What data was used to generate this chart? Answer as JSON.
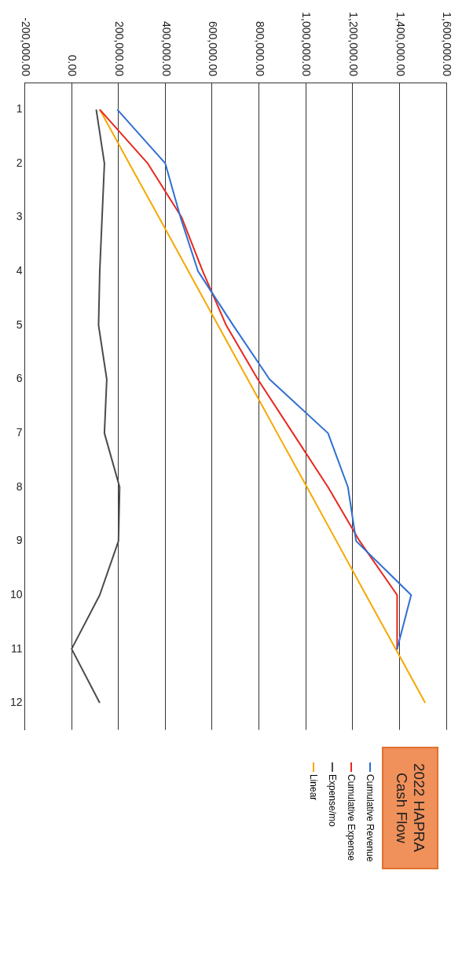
{
  "chart_data": {
    "type": "line",
    "title": "2022 HAPRA Cash Flow",
    "orientation": "horizontal",
    "categories": [
      "1",
      "2",
      "3",
      "4",
      "5",
      "6",
      "7",
      "8",
      "9",
      "10",
      "11",
      "12"
    ],
    "series": [
      {
        "name": "Cumulative Revenue",
        "color": "#2f6fd0",
        "values": [
          195000,
          400000,
          465000,
          540000,
          690000,
          845000,
          1095000,
          1180000,
          1215000,
          1450000,
          1390000,
          null
        ]
      },
      {
        "name": "Cumulative Expense",
        "color": "#e8281e",
        "values": [
          120000,
          325000,
          470000,
          560000,
          660000,
          795000,
          945000,
          1095000,
          1230000,
          1390000,
          1390000,
          null
        ]
      },
      {
        "name": "Expense/mo",
        "color": "#4a4a4a",
        "values": [
          105000,
          140000,
          130000,
          120000,
          115000,
          150000,
          140000,
          205000,
          200000,
          120000,
          0,
          120000
        ]
      },
      {
        "name": "Linear",
        "color": "#f5a800",
        "values": [
          120000,
          246000,
          373000,
          499000,
          625000,
          752000,
          878000,
          1005000,
          1131000,
          1257000,
          1384000,
          1510000
        ]
      }
    ],
    "xlim": [
      -200000,
      1600000
    ],
    "xticks": [
      {
        "value": -200000,
        "label": "-200,000.00"
      },
      {
        "value": 0,
        "label": "0.00"
      },
      {
        "value": 200000,
        "label": "200,000.00"
      },
      {
        "value": 400000,
        "label": "400,000.00"
      },
      {
        "value": 600000,
        "label": "600,000.00"
      },
      {
        "value": 800000,
        "label": "800,000.00"
      },
      {
        "value": 1000000,
        "label": "1,000,000.00"
      },
      {
        "value": 1200000,
        "label": "1,200,000.00"
      },
      {
        "value": 1400000,
        "label": "1,400,000.00"
      },
      {
        "value": 1600000,
        "label": "1,600,000.00"
      }
    ],
    "grid": "x",
    "legend": "bottom",
    "marker": "none",
    "line_style": "solid"
  }
}
